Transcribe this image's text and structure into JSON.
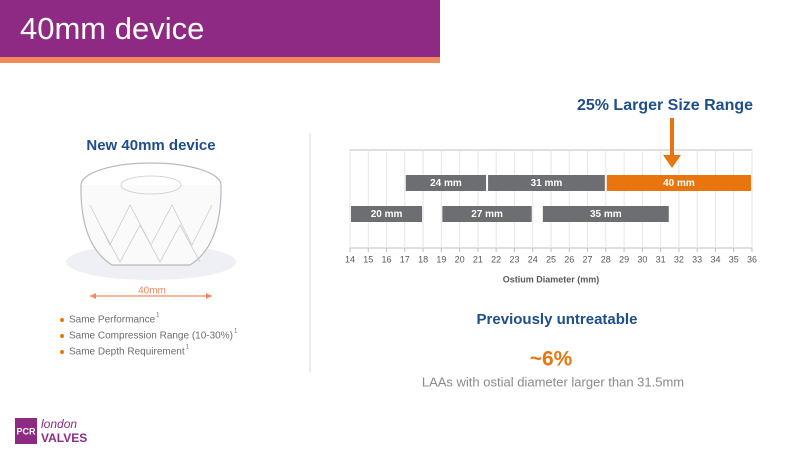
{
  "header": {
    "title": "40mm device"
  },
  "left_panel": {
    "heading": "New 40mm device",
    "image_label": "40mm",
    "bullets": [
      {
        "text": "Same Performance",
        "note": "1"
      },
      {
        "text": "Same Compression Range (10-30%)",
        "note": "1"
      },
      {
        "text": "Same Depth Requirement",
        "note": "1"
      }
    ]
  },
  "chart_data": {
    "type": "range-bar",
    "annotation": "25% Larger Size Range",
    "xlabel": "Ostium Diameter (mm)",
    "xlim": [
      14,
      36
    ],
    "xticks": [
      14,
      15,
      16,
      17,
      18,
      19,
      20,
      21,
      22,
      23,
      24,
      25,
      26,
      27,
      28,
      29,
      30,
      31,
      32,
      33,
      34,
      35,
      36
    ],
    "grid": true,
    "rows": [
      {
        "bars": [
          {
            "label": "24 mm",
            "start": 17,
            "end": 21.5,
            "color": "#6d6e71"
          },
          {
            "label": "31 mm",
            "start": 21.5,
            "end": 28,
            "color": "#6d6e71"
          },
          {
            "label": "40 mm",
            "start": 28,
            "end": 36,
            "color": "#e8750d"
          }
        ]
      },
      {
        "bars": [
          {
            "label": "20 mm",
            "start": 14,
            "end": 18,
            "color": "#6d6e71"
          },
          {
            "label": "27 mm",
            "start": 19,
            "end": 24,
            "color": "#6d6e71"
          },
          {
            "label": "35 mm",
            "start": 24.5,
            "end": 31.5,
            "color": "#6d6e71"
          }
        ]
      }
    ]
  },
  "stats": {
    "heading": "Previously untreatable",
    "value": "~6%",
    "caption": "LAAs with ostial diameter larger than 31.5mm"
  },
  "logo": {
    "box": "PCR",
    "line1": "london",
    "line2": "VALVES"
  }
}
